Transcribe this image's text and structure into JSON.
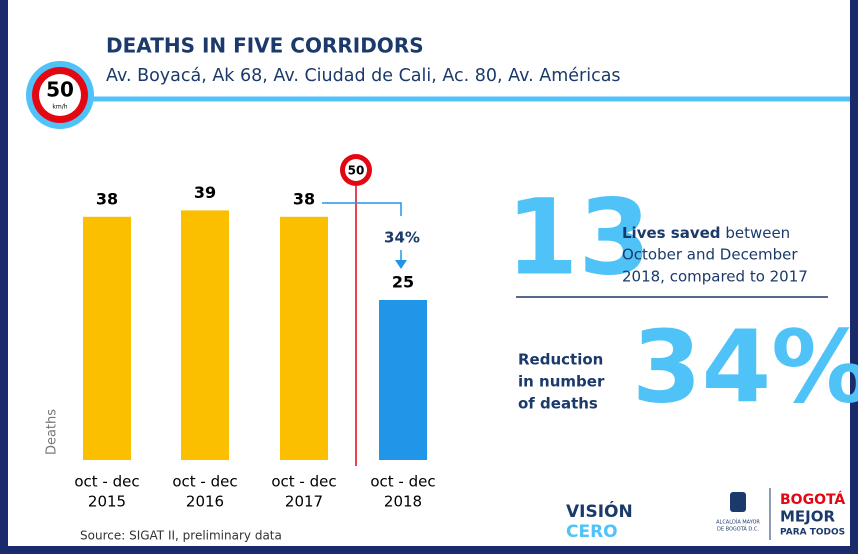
{
  "chart_data": {
    "type": "bar",
    "title": "DEATHS IN FIVE CORRIDORS",
    "subtitle": "Av. Boyacá, Ak 68, Av. Ciudad de Cali, Ac. 80, Av. Américas",
    "sign": {
      "number": "50",
      "unit": "km/h"
    },
    "categories": [
      [
        "oct - dec",
        "2015"
      ],
      [
        "oct - dec",
        "2016"
      ],
      [
        "oct - dec",
        "2017"
      ],
      [
        "oct - dec",
        "2018"
      ]
    ],
    "values": [
      38,
      39,
      38,
      25
    ],
    "colors": [
      "#fbbf00",
      "#fbbf00",
      "#fbbf00",
      "#2196e8"
    ],
    "ylim": [
      0,
      40
    ],
    "ylabel": "Deaths",
    "marker_sign": "50",
    "annotation": "34%",
    "lives_saved": {
      "number": "13",
      "bold": "Lives saved",
      "lines": [
        "between",
        "October and December",
        "2018, compared to 2017"
      ]
    },
    "reduction": {
      "lines": [
        "Reduction",
        "in number",
        "of deaths"
      ],
      "number": "34%"
    },
    "source": "Source: SIGAT II, preliminary data",
    "logos": {
      "vision": "VISIÓN",
      "cero": "CERO",
      "alcaldia": [
        "ALCALDÍA MAYOR",
        "DE BOGOTÁ D.C."
      ],
      "bogota": "BOGOTÁ",
      "mejor": "MEJOR",
      "para_todos": "PARA TODOS"
    }
  }
}
